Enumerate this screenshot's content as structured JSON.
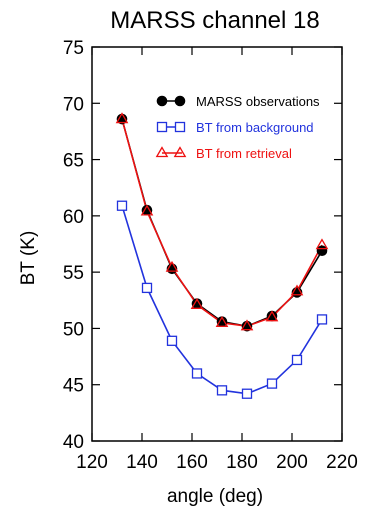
{
  "chart_data": {
    "type": "line",
    "title": "MARSS channel 18",
    "xlabel": "angle (deg)",
    "ylabel": "BT (K)",
    "xlim": [
      120,
      220
    ],
    "ylim": [
      40,
      75
    ],
    "xticks": [
      "120",
      "140",
      "160",
      "180",
      "200",
      "220"
    ],
    "yticks": [
      "40",
      "45",
      "50",
      "55",
      "60",
      "65",
      "70",
      "75"
    ],
    "grid": false,
    "legend_position": "top-right",
    "series": [
      {
        "name": "MARSS observations",
        "marker": "filled-circle",
        "color": "#000000",
        "x": [
          132,
          142,
          152,
          162,
          172,
          182,
          192,
          202,
          212
        ],
        "y": [
          68.6,
          60.5,
          55.3,
          52.2,
          50.6,
          50.2,
          51.1,
          53.2,
          56.9
        ]
      },
      {
        "name": "BT from background",
        "marker": "open-square",
        "color": "#2233dd",
        "x": [
          132,
          142,
          152,
          162,
          172,
          182,
          192,
          202,
          212
        ],
        "y": [
          60.9,
          53.6,
          48.9,
          46.0,
          44.5,
          44.2,
          45.1,
          47.2,
          50.8
        ]
      },
      {
        "name": "BT from retrieval",
        "marker": "open-triangle",
        "color": "#ee1111",
        "x": [
          132,
          142,
          152,
          162,
          172,
          182,
          192,
          202,
          212
        ],
        "y": [
          68.6,
          60.4,
          55.4,
          52.1,
          50.5,
          50.2,
          51.0,
          53.3,
          57.4
        ]
      }
    ]
  }
}
